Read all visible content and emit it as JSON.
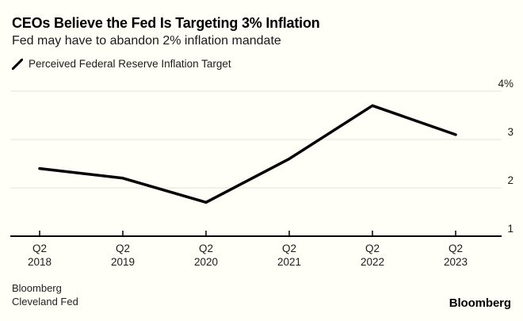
{
  "header": {
    "title": "CEOs Believe the Fed Is Targeting 3% Inflation",
    "subtitle": "Fed may have to abandon 2% inflation mandate"
  },
  "legend": {
    "icon": "line-series-icon",
    "label": "Perceived Federal Reserve Inflation Target"
  },
  "footer": {
    "source_line1": "Bloomberg",
    "source_line2": "Cleveland Fed",
    "brand": "Bloomberg"
  },
  "colors": {
    "background": "#fffef7",
    "line": "#000000",
    "grid": "#e4e3df",
    "axis": "#000000",
    "text": "#1c1c1c"
  },
  "chart_data": {
    "type": "line",
    "title": "CEOs Believe the Fed Is Targeting 3% Inflation",
    "subtitle": "Fed may have to abandon 2% inflation mandate",
    "categories": [
      "Q2 2018",
      "Q2 2019",
      "Q2 2020",
      "Q2 2021",
      "Q2 2022",
      "Q2 2023"
    ],
    "x_tick_labels": [
      {
        "line1": "Q2",
        "line2": "2018"
      },
      {
        "line1": "Q2",
        "line2": "2019"
      },
      {
        "line1": "Q2",
        "line2": "2020"
      },
      {
        "line1": "Q2",
        "line2": "2021"
      },
      {
        "line1": "Q2",
        "line2": "2022"
      },
      {
        "line1": "Q2",
        "line2": "2023"
      }
    ],
    "series": [
      {
        "name": "Perceived Federal Reserve Inflation Target",
        "color": "#000000",
        "values": [
          2.4,
          2.2,
          1.7,
          2.6,
          3.7,
          3.1
        ]
      }
    ],
    "xlabel": "",
    "ylabel": "",
    "ylim": [
      1,
      4
    ],
    "yticks": [
      {
        "value": 4,
        "label": "4%"
      },
      {
        "value": 3,
        "label": "3"
      },
      {
        "value": 2,
        "label": "2"
      },
      {
        "value": 1,
        "label": "1"
      }
    ],
    "grid": "horizontal",
    "legend_position": "top-left"
  }
}
